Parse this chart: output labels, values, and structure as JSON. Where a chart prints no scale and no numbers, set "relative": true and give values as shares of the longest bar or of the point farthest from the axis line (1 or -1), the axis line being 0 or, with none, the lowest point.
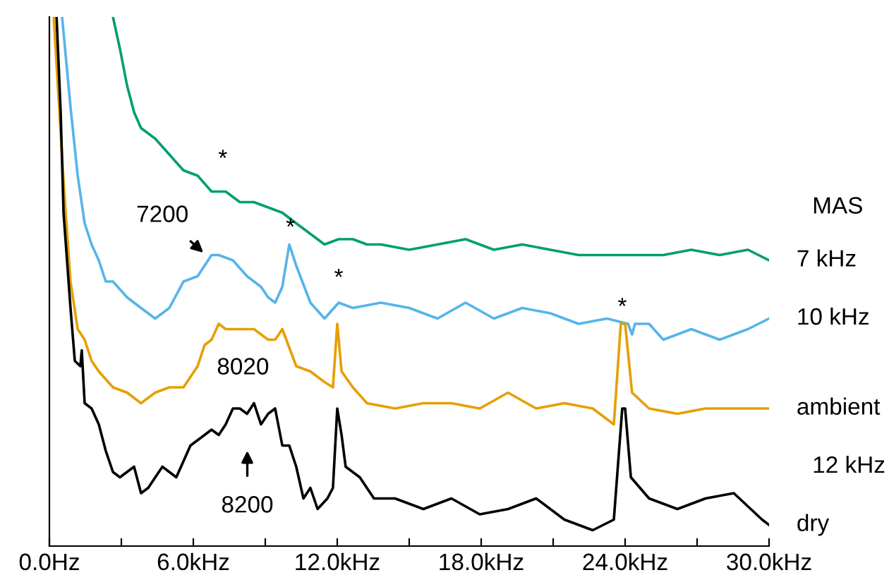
{
  "chart_data": {
    "type": "line",
    "relative": true,
    "xlim": [
      0,
      30
    ],
    "xticks": [
      {
        "value": 0,
        "label": "0.0Hz"
      },
      {
        "value": 3,
        "label": null
      },
      {
        "value": 6,
        "label": "6.0kHz"
      },
      {
        "value": 9,
        "label": null
      },
      {
        "value": 12,
        "label": "12.0kHz"
      },
      {
        "value": 15,
        "label": null
      },
      {
        "value": 18,
        "label": "18.0kHz"
      },
      {
        "value": 21,
        "label": null
      },
      {
        "value": 24,
        "label": "24.0kHz"
      },
      {
        "value": 27,
        "label": null
      },
      {
        "value": 30,
        "label": "30.0kHz"
      }
    ],
    "grid": false,
    "legend": false,
    "marker": "none",
    "line_style": "solid",
    "series": [
      {
        "name": "7 kHz",
        "color": "#009e73",
        "x": [
          2.65,
          2.94,
          3.24,
          3.53,
          3.82,
          4.41,
          5.0,
          5.59,
          6.18,
          6.76,
          7.35,
          7.94,
          8.53,
          9.12,
          9.71,
          10.29,
          10.88,
          11.47,
          12.06,
          12.65,
          13.24,
          13.82,
          15.0,
          16.18,
          17.35,
          18.53,
          19.71,
          20.88,
          22.06,
          23.24,
          24.41,
          25.59,
          26.76,
          27.94,
          29.12,
          30.0
        ],
        "values": [
          1.0,
          0.94,
          0.87,
          0.82,
          0.79,
          0.77,
          0.74,
          0.71,
          0.7,
          0.67,
          0.67,
          0.65,
          0.65,
          0.64,
          0.63,
          0.61,
          0.59,
          0.57,
          0.58,
          0.58,
          0.57,
          0.57,
          0.56,
          0.57,
          0.58,
          0.56,
          0.57,
          0.56,
          0.55,
          0.55,
          0.55,
          0.55,
          0.56,
          0.55,
          0.56,
          0.54
        ]
      },
      {
        "name": "10 kHz",
        "color": "#56b4e9",
        "x": [
          0.53,
          0.88,
          1.18,
          1.47,
          1.76,
          2.06,
          2.35,
          2.65,
          3.24,
          3.82,
          4.41,
          5.0,
          5.59,
          6.18,
          6.76,
          7.06,
          7.65,
          8.24,
          8.82,
          9.12,
          9.41,
          9.71,
          10.0,
          10.29,
          10.88,
          11.47,
          12.06,
          12.65,
          13.82,
          15.0,
          16.18,
          17.35,
          18.53,
          19.71,
          20.88,
          22.06,
          23.24,
          24.12,
          24.29,
          24.41,
          25.0,
          25.59,
          26.76,
          27.94,
          29.12,
          30.0
        ],
        "values": [
          1.0,
          0.83,
          0.7,
          0.61,
          0.57,
          0.54,
          0.5,
          0.5,
          0.47,
          0.45,
          0.43,
          0.45,
          0.5,
          0.51,
          0.55,
          0.55,
          0.54,
          0.51,
          0.49,
          0.47,
          0.46,
          0.49,
          0.57,
          0.53,
          0.46,
          0.43,
          0.46,
          0.45,
          0.46,
          0.45,
          0.43,
          0.46,
          0.43,
          0.45,
          0.44,
          0.42,
          0.43,
          0.42,
          0.4,
          0.42,
          0.42,
          0.39,
          0.41,
          0.39,
          0.41,
          0.43
        ]
      },
      {
        "name": "ambient",
        "color": "#e69f00",
        "x": [
          0.18,
          0.59,
          0.88,
          1.18,
          1.47,
          1.76,
          2.06,
          2.65,
          3.24,
          3.82,
          4.41,
          5.0,
          5.59,
          6.18,
          6.47,
          6.76,
          7.06,
          7.35,
          7.65,
          8.53,
          9.12,
          9.41,
          9.71,
          10.29,
          10.88,
          11.47,
          11.82,
          12.0,
          12.18,
          12.65,
          13.24,
          14.41,
          15.59,
          16.76,
          17.94,
          19.12,
          20.29,
          21.47,
          22.65,
          23.53,
          23.82,
          24.0,
          24.29,
          25.0,
          26.18,
          27.35,
          28.53,
          29.71,
          30.0
        ],
        "values": [
          1.0,
          0.69,
          0.5,
          0.41,
          0.39,
          0.35,
          0.33,
          0.3,
          0.29,
          0.27,
          0.29,
          0.3,
          0.3,
          0.34,
          0.38,
          0.39,
          0.42,
          0.41,
          0.41,
          0.41,
          0.39,
          0.39,
          0.41,
          0.34,
          0.33,
          0.31,
          0.3,
          0.42,
          0.33,
          0.3,
          0.27,
          0.26,
          0.27,
          0.27,
          0.26,
          0.29,
          0.26,
          0.27,
          0.26,
          0.23,
          0.42,
          0.42,
          0.29,
          0.26,
          0.25,
          0.26,
          0.26,
          0.26,
          0.26
        ]
      },
      {
        "name": "dry",
        "color": "#000000",
        "x": [
          0.3,
          0.47,
          0.59,
          0.88,
          1.06,
          1.29,
          1.35,
          1.47,
          1.76,
          2.06,
          2.35,
          2.65,
          2.94,
          3.53,
          3.82,
          4.12,
          4.71,
          5.29,
          5.88,
          6.47,
          6.76,
          7.06,
          7.35,
          7.65,
          7.94,
          8.24,
          8.53,
          8.82,
          9.12,
          9.41,
          9.71,
          10.0,
          10.29,
          10.59,
          10.88,
          11.18,
          11.59,
          11.82,
          12.0,
          12.18,
          12.35,
          12.94,
          13.53,
          14.41,
          15.59,
          16.76,
          17.94,
          19.12,
          20.29,
          21.47,
          22.65,
          23.53,
          23.88,
          24.0,
          24.24,
          25.0,
          26.18,
          27.35,
          28.53,
          29.71,
          30.0
        ],
        "values": [
          1.0,
          0.82,
          0.63,
          0.45,
          0.35,
          0.34,
          0.37,
          0.27,
          0.26,
          0.23,
          0.18,
          0.14,
          0.13,
          0.15,
          0.1,
          0.11,
          0.15,
          0.13,
          0.19,
          0.21,
          0.22,
          0.21,
          0.23,
          0.26,
          0.26,
          0.25,
          0.27,
          0.23,
          0.25,
          0.26,
          0.19,
          0.19,
          0.15,
          0.09,
          0.11,
          0.07,
          0.09,
          0.11,
          0.26,
          0.21,
          0.15,
          0.13,
          0.09,
          0.09,
          0.07,
          0.09,
          0.06,
          0.07,
          0.09,
          0.05,
          0.03,
          0.05,
          0.26,
          0.26,
          0.13,
          0.09,
          0.07,
          0.09,
          0.1,
          0.05,
          0.04
        ]
      }
    ],
    "annotations": [
      "*",
      "*",
      "*",
      "*",
      "7200",
      "8020",
      "8200",
      "MAS",
      "12 kHz"
    ]
  }
}
